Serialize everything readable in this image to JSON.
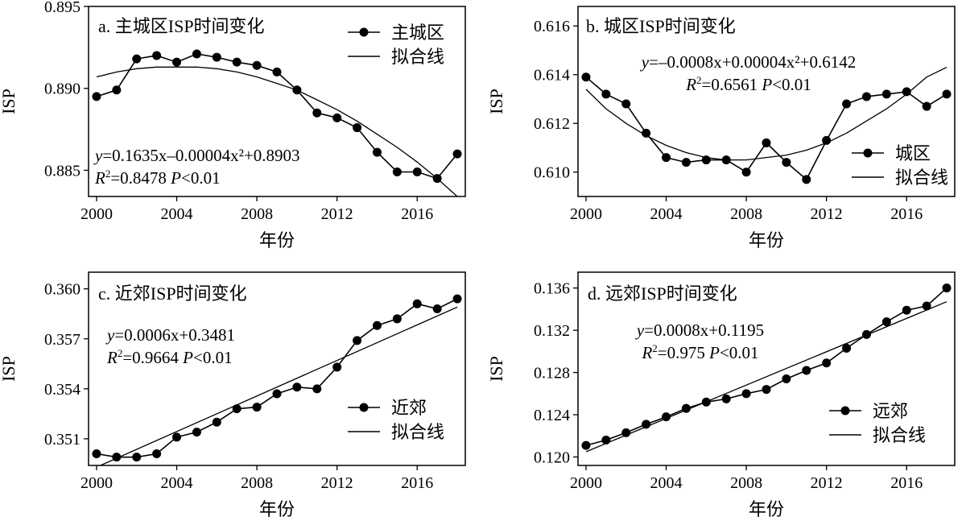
{
  "figure": {
    "x_tick_values": [
      2000,
      2004,
      2008,
      2012,
      2016
    ]
  },
  "chart_data": [
    {
      "type": "line",
      "title": "a. 主城区ISP时间变化",
      "xlabel": "年份",
      "ylabel": "ISP",
      "xlim": [
        1999.6,
        2018.4
      ],
      "ylim": [
        0.8834,
        0.895
      ],
      "y_ticks": [
        "0.885",
        "0.890",
        "0.895"
      ],
      "legend_position": "top-right",
      "equation": {
        "y": "y",
        "text": "=0.1635x–0.00004x²+0.8903",
        "r2": "=0.8478",
        "p": "<0.01"
      },
      "series": [
        {
          "name": "主城区",
          "style": "line-markers",
          "x": [
            2000,
            2001,
            2002,
            2003,
            2004,
            2005,
            2006,
            2007,
            2008,
            2009,
            2010,
            2011,
            2012,
            2013,
            2014,
            2015,
            2016,
            2017,
            2018
          ],
          "values": [
            0.8895,
            0.8899,
            0.8918,
            0.892,
            0.8916,
            0.8921,
            0.8919,
            0.8916,
            0.8914,
            0.891,
            0.8899,
            0.8885,
            0.8882,
            0.8876,
            0.8861,
            0.8849,
            0.8849,
            0.8845,
            0.886
          ]
        },
        {
          "name": "拟合线",
          "style": "line",
          "x": [
            2000,
            2001,
            2002,
            2003,
            2004,
            2005,
            2006,
            2007,
            2008,
            2009,
            2010,
            2011,
            2012,
            2013,
            2014,
            2015,
            2016,
            2017,
            2018
          ],
          "values": [
            0.8907,
            0.891,
            0.8912,
            0.8913,
            0.8913,
            0.8913,
            0.8912,
            0.891,
            0.8907,
            0.8903,
            0.8899,
            0.8893,
            0.8887,
            0.888,
            0.8872,
            0.8864,
            0.8855,
            0.8845,
            0.8834
          ]
        }
      ]
    },
    {
      "type": "line",
      "title": "b. 城区ISP时间变化",
      "xlabel": "年份",
      "ylabel": "ISP",
      "xlim": [
        1999.6,
        2018.4
      ],
      "ylim": [
        0.609,
        0.6168
      ],
      "y_ticks": [
        "0.610",
        "0.612",
        "0.614",
        "0.616"
      ],
      "legend_position": "bottom-right",
      "equation": {
        "y": "y",
        "text": "=–0.0008x+0.00004x²+0.6142",
        "r2": "=0.6561",
        "p": "<0.01"
      },
      "series": [
        {
          "name": "城区",
          "style": "line-markers",
          "x": [
            2000,
            2001,
            2002,
            2003,
            2004,
            2005,
            2006,
            2007,
            2008,
            2009,
            2010,
            2011,
            2012,
            2013,
            2014,
            2015,
            2016,
            2017,
            2018
          ],
          "values": [
            0.6139,
            0.6132,
            0.6128,
            0.6116,
            0.6106,
            0.6104,
            0.6105,
            0.6105,
            0.61,
            0.6112,
            0.6104,
            0.6097,
            0.6113,
            0.6128,
            0.6131,
            0.6132,
            0.6133,
            0.6127,
            0.6132
          ]
        },
        {
          "name": "拟合线",
          "style": "line",
          "x": [
            2000,
            2001,
            2002,
            2003,
            2004,
            2005,
            2006,
            2007,
            2008,
            2009,
            2010,
            2011,
            2012,
            2013,
            2014,
            2015,
            2016,
            2017,
            2018
          ],
          "values": [
            0.6134,
            0.6126,
            0.612,
            0.6115,
            0.6111,
            0.6108,
            0.6106,
            0.6105,
            0.6105,
            0.6106,
            0.6107,
            0.6109,
            0.6112,
            0.6116,
            0.6121,
            0.6126,
            0.6132,
            0.6139,
            0.6143
          ]
        }
      ]
    },
    {
      "type": "line",
      "title": "c. 近郊ISP时间变化",
      "xlabel": "年份",
      "ylabel": "ISP",
      "xlim": [
        1999.6,
        2018.4
      ],
      "ylim": [
        0.3494,
        0.361
      ],
      "y_ticks": [
        "0.351",
        "0.354",
        "0.357",
        "0.360"
      ],
      "legend_position": "bottom-right",
      "equation": {
        "y": "y",
        "text": "=0.0006x+0.3481",
        "r2": "=0.9664",
        "p": "<0.01"
      },
      "series": [
        {
          "name": "近郊",
          "style": "line-markers",
          "x": [
            2000,
            2001,
            2002,
            2003,
            2004,
            2005,
            2006,
            2007,
            2008,
            2009,
            2010,
            2011,
            2012,
            2013,
            2014,
            2015,
            2016,
            2017,
            2018
          ],
          "values": [
            0.3501,
            0.3499,
            0.3499,
            0.3501,
            0.3511,
            0.3514,
            0.352,
            0.3528,
            0.3529,
            0.3537,
            0.3541,
            0.354,
            0.3553,
            0.3569,
            0.3578,
            0.3582,
            0.3591,
            0.3588,
            0.3594
          ]
        },
        {
          "name": "拟合线",
          "style": "line",
          "x": [
            2000,
            2018
          ],
          "values": [
            0.3493,
            0.3589
          ]
        }
      ]
    },
    {
      "type": "line",
      "title": "d. 远郊ISP时间变化",
      "xlabel": "年份",
      "ylabel": "ISP",
      "xlim": [
        1999.6,
        2018.4
      ],
      "ylim": [
        0.1192,
        0.1375
      ],
      "y_ticks": [
        "0.120",
        "0.124",
        "0.128",
        "0.132",
        "0.136"
      ],
      "legend_position": "bottom-right",
      "equation": {
        "y": "y",
        "text": "=0.0008x+0.1195",
        "r2": "=0.975",
        "p": "<0.01"
      },
      "series": [
        {
          "name": "远郊",
          "style": "line-markers",
          "x": [
            2000,
            2001,
            2002,
            2003,
            2004,
            2005,
            2006,
            2007,
            2008,
            2009,
            2010,
            2011,
            2012,
            2013,
            2014,
            2015,
            2016,
            2017,
            2018
          ],
          "values": [
            0.1211,
            0.1216,
            0.1223,
            0.1231,
            0.1238,
            0.1246,
            0.1252,
            0.1255,
            0.126,
            0.1264,
            0.1274,
            0.1282,
            0.1289,
            0.1303,
            0.1316,
            0.1328,
            0.1339,
            0.1343,
            0.136
          ]
        },
        {
          "name": "拟合线",
          "style": "line",
          "x": [
            2000,
            2018
          ],
          "values": [
            0.1205,
            0.1347
          ]
        }
      ]
    }
  ]
}
